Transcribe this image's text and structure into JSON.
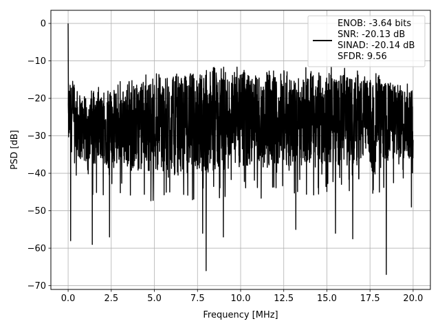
{
  "chart_data": {
    "type": "line",
    "xlabel": "Frequency [MHz]",
    "ylabel": "PSD [dB]",
    "xlim": [
      -1.0,
      21.0
    ],
    "ylim": [
      -71.0,
      3.5
    ],
    "x_ticks": [
      0.0,
      2.5,
      5.0,
      7.5,
      10.0,
      12.5,
      15.0,
      17.5,
      20.0
    ],
    "x_tick_labels": [
      "0.0",
      "2.5",
      "5.0",
      "7.5",
      "10.0",
      "12.5",
      "15.0",
      "17.5",
      "20.0"
    ],
    "y_ticks": [
      0,
      -10,
      -20,
      -30,
      -40,
      -50,
      -60,
      -70
    ],
    "y_tick_labels": [
      "0",
      "−10",
      "−20",
      "−30",
      "−40",
      "−50",
      "−60",
      "−70"
    ],
    "grid": true,
    "legend_position": "top-right",
    "series": [
      {
        "name": "ENOB: -3.64 bits\nSNR: -20.13 dB\nSINAD: -20.14 dB\nSFDR: 9.56",
        "legend_lines": [
          "ENOB: -3.64 bits",
          "SNR: -20.13 dB",
          "SINAD: -20.14 dB",
          "SFDR: 9.56"
        ],
        "color": "#000000",
        "frequency_range_mhz": [
          0.0,
          20.0
        ],
        "peak": {
          "x": 0.0,
          "y": 0.0
        },
        "upper_envelope": [
          [
            0.1,
            -16
          ],
          [
            1,
            -20
          ],
          [
            2.5,
            -18
          ],
          [
            5,
            -15
          ],
          [
            7.5,
            -13
          ],
          [
            10,
            -13
          ],
          [
            12.5,
            -14
          ],
          [
            15,
            -13
          ],
          [
            17.5,
            -15
          ],
          [
            20,
            -17
          ]
        ],
        "lower_envelope": [
          [
            0.1,
            -34
          ],
          [
            1,
            -38
          ],
          [
            2.5,
            -38
          ],
          [
            5,
            -40
          ],
          [
            7.5,
            -40
          ],
          [
            10,
            -40
          ],
          [
            12.5,
            -38
          ],
          [
            15,
            -38
          ],
          [
            17.5,
            -38
          ],
          [
            20,
            -36
          ]
        ],
        "notable_dips": [
          {
            "x": 0.15,
            "y": -58.0
          },
          {
            "x": 1.4,
            "y": -59.0
          },
          {
            "x": 2.4,
            "y": -57.0
          },
          {
            "x": 7.8,
            "y": -56.0
          },
          {
            "x": 8.0,
            "y": -66.0
          },
          {
            "x": 9.0,
            "y": -57.0
          },
          {
            "x": 13.2,
            "y": -55.0
          },
          {
            "x": 15.5,
            "y": -56.0
          },
          {
            "x": 16.5,
            "y": -57.5
          },
          {
            "x": 18.45,
            "y": -67.0
          },
          {
            "x": 19.9,
            "y": -49.0
          }
        ]
      }
    ]
  }
}
